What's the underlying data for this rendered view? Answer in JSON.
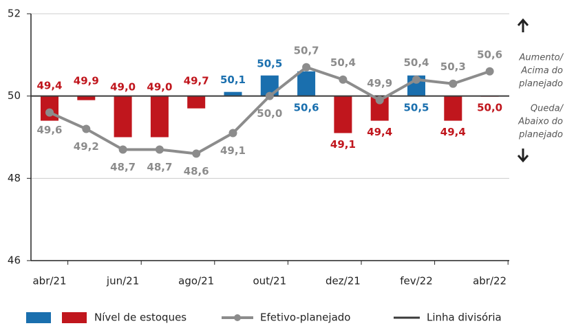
{
  "chart_data": {
    "type": "bar",
    "categories": [
      "abr/21",
      null,
      "jun/21",
      null,
      "ago/21",
      null,
      "out/21",
      null,
      "dez/21",
      null,
      "fev/22",
      null,
      "abr/22"
    ],
    "series": [
      {
        "name": "Nível de estoques",
        "type": "bar",
        "color_above": "#1a6fae",
        "color_below": "#c0161d",
        "values": [
          49.4,
          49.9,
          49.0,
          49.0,
          49.7,
          50.1,
          50.5,
          50.6,
          49.1,
          49.4,
          50.5,
          49.4,
          50.0
        ],
        "value_labels": [
          "49,4",
          "49,9",
          "49,0",
          "49,0",
          "49,7",
          "50,1",
          "50,5",
          "50,6",
          "49,1",
          "49,4",
          "50,5",
          "49,4",
          "50,0"
        ]
      },
      {
        "name": "Efetivo-planejado",
        "type": "line",
        "color": "#8c8c8c",
        "values": [
          49.6,
          49.2,
          48.7,
          48.7,
          48.6,
          49.1,
          50.0,
          50.7,
          50.4,
          49.9,
          50.4,
          50.3,
          50.6
        ],
        "value_labels": [
          "49,6",
          "49,2",
          "48,7",
          "48,7",
          "48,6",
          "49,1",
          "50,0",
          "50,7",
          "50,4",
          "49,9",
          "50,4",
          "50,3",
          "50,6"
        ]
      }
    ],
    "divider": {
      "name": "Linha divisória",
      "value": 50,
      "color": "#3a3a3a"
    },
    "ylim": [
      46,
      52
    ],
    "yticks": [
      46,
      48,
      50,
      52
    ],
    "grid": true,
    "annotations": {
      "above": [
        "Aumento/",
        "Acima do",
        "planejado"
      ],
      "below": [
        "Queda/",
        "Abaixo do",
        "planejado"
      ]
    }
  }
}
